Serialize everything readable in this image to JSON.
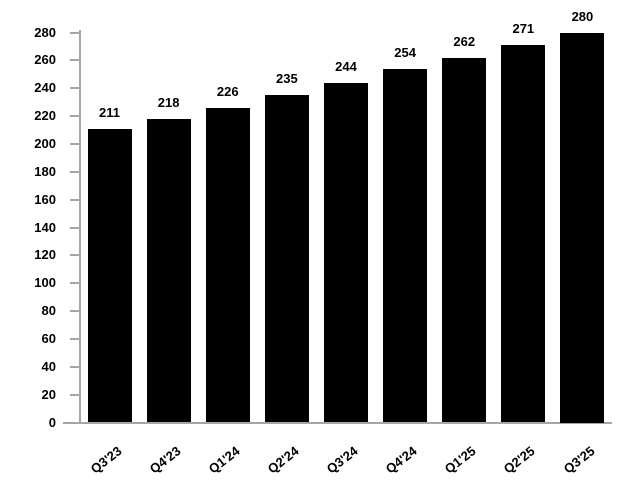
{
  "chart_data": {
    "type": "bar",
    "title": "",
    "xlabel": "",
    "ylabel": "",
    "categories": [
      "Q3'23",
      "Q4'23",
      "Q1'24",
      "Q2'24",
      "Q3'24",
      "Q4'24",
      "Q1'25",
      "Q2'25",
      "Q3'25"
    ],
    "values": [
      211,
      218,
      226,
      235,
      244,
      254,
      262,
      271,
      280
    ],
    "data_labels": [
      "211",
      "218",
      "226",
      "235",
      "244",
      "254",
      "262",
      "271",
      "280"
    ],
    "ylim": [
      0,
      280
    ],
    "ytick_step": 20,
    "yticks": [
      0,
      20,
      40,
      60,
      80,
      100,
      120,
      140,
      160,
      180,
      200,
      220,
      240,
      260,
      280
    ],
    "grid": false,
    "legend": false,
    "bar_color": "#000000",
    "axis_color": "#a6a6a6",
    "label_color": "#000000",
    "background_color": "#ffffff",
    "x_label_rotation_deg": -38
  }
}
